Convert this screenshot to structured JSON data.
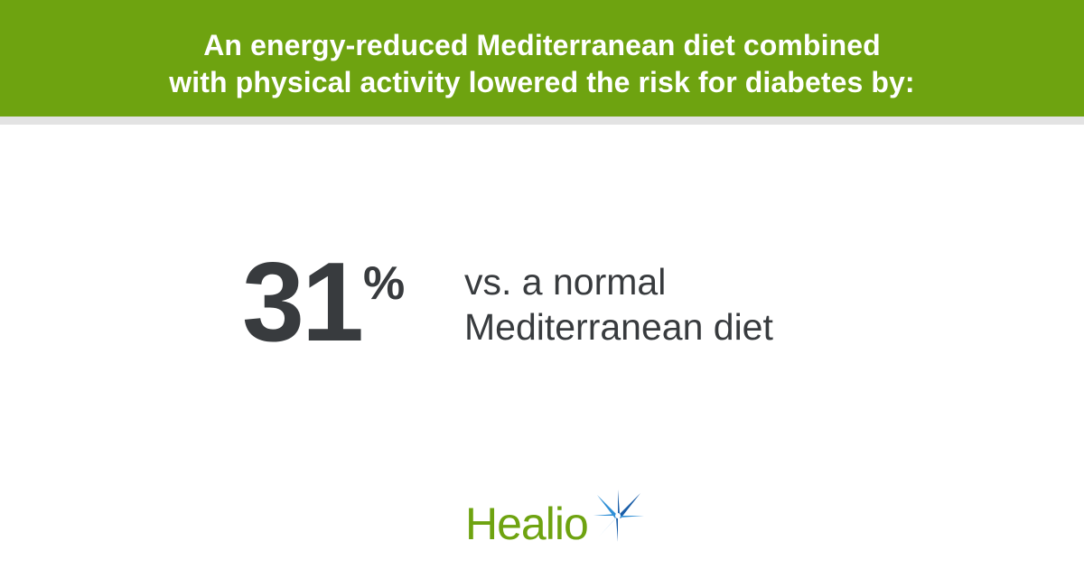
{
  "header": {
    "line1": "An energy-reduced Mediterranean diet combined",
    "line2": "with physical activity lowered the risk for diabetes by:"
  },
  "stat": {
    "value": "31",
    "unit": "%",
    "comparison_line1": "vs. a normal",
    "comparison_line2": "Mediterranean diet"
  },
  "logo": {
    "wordmark": "Healio",
    "icon": "star-icon"
  },
  "colors": {
    "header_green": "#6ea310",
    "header_rule": "#e3e3e3",
    "text_dark": "#383b3e",
    "logo_green": "#6ea310",
    "star_blue": "#1a5ea8",
    "star_light_blue": "#2f8fd6"
  }
}
